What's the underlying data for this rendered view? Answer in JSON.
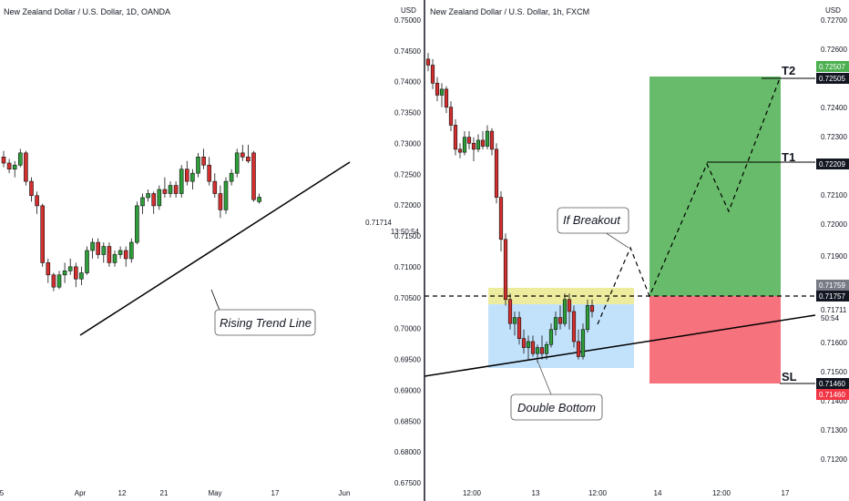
{
  "chart_data": [
    {
      "type": "candlestick",
      "title": "New Zealand Dollar / U.S. Dollar, 1D, OANDA",
      "x_tick_labels": [
        "5",
        "Apr",
        "12",
        "21",
        "May",
        "17",
        "Jun"
      ],
      "price_axis_labels": [
        "0.71714",
        "13:50:54"
      ],
      "trend_line_label": "Rising Trend Line",
      "candles": [
        [
          0.727,
          0.7285,
          0.7245,
          0.7255
        ],
        [
          0.7255,
          0.7265,
          0.723,
          0.724
        ],
        [
          0.724,
          0.726,
          0.722,
          0.725
        ],
        [
          0.725,
          0.729,
          0.7245,
          0.728
        ],
        [
          0.728,
          0.7285,
          0.72,
          0.721
        ],
        [
          0.721,
          0.722,
          0.716,
          0.7175
        ],
        [
          0.7175,
          0.7185,
          0.713,
          0.715
        ],
        [
          0.715,
          0.7155,
          0.7,
          0.701
        ],
        [
          0.701,
          0.702,
          0.696,
          0.698
        ],
        [
          0.698,
          0.6985,
          0.694,
          0.695
        ],
        [
          0.695,
          0.699,
          0.6945,
          0.698
        ],
        [
          0.698,
          0.701,
          0.696,
          0.699
        ],
        [
          0.699,
          0.702,
          0.698,
          0.7
        ],
        [
          0.7,
          0.701,
          0.695,
          0.697
        ],
        [
          0.697,
          0.7,
          0.6955,
          0.6985
        ],
        [
          0.6985,
          0.705,
          0.698,
          0.704
        ],
        [
          0.704,
          0.707,
          0.702,
          0.706
        ],
        [
          0.706,
          0.707,
          0.702,
          0.703
        ],
        [
          0.703,
          0.706,
          0.701,
          0.705
        ],
        [
          0.705,
          0.706,
          0.7,
          0.701
        ],
        [
          0.701,
          0.704,
          0.7,
          0.703
        ],
        [
          0.703,
          0.705,
          0.702,
          0.704
        ],
        [
          0.704,
          0.705,
          0.7,
          0.702
        ],
        [
          0.702,
          0.707,
          0.701,
          0.706
        ],
        [
          0.706,
          0.716,
          0.7055,
          0.715
        ],
        [
          0.715,
          0.718,
          0.713,
          0.717
        ],
        [
          0.717,
          0.719,
          0.716,
          0.718
        ],
        [
          0.718,
          0.7185,
          0.713,
          0.715
        ],
        [
          0.715,
          0.72,
          0.714,
          0.719
        ],
        [
          0.719,
          0.722,
          0.717,
          0.718
        ],
        [
          0.718,
          0.721,
          0.717,
          0.72
        ],
        [
          0.72,
          0.721,
          0.717,
          0.718
        ],
        [
          0.718,
          0.725,
          0.717,
          0.724
        ],
        [
          0.724,
          0.726,
          0.72,
          0.721
        ],
        [
          0.721,
          0.724,
          0.719,
          0.723
        ],
        [
          0.723,
          0.728,
          0.722,
          0.727
        ],
        [
          0.727,
          0.729,
          0.724,
          0.725
        ],
        [
          0.725,
          0.727,
          0.72,
          0.721
        ],
        [
          0.721,
          0.723,
          0.717,
          0.718
        ],
        [
          0.718,
          0.72,
          0.712,
          0.714
        ],
        [
          0.714,
          0.722,
          0.713,
          0.721
        ],
        [
          0.721,
          0.724,
          0.72,
          0.723
        ],
        [
          0.723,
          0.729,
          0.722,
          0.728
        ],
        [
          0.728,
          0.73,
          0.726,
          0.727
        ],
        [
          0.727,
          0.73,
          0.7255,
          0.726
        ],
        [
          0.728,
          0.7285,
          0.716,
          0.7165
        ],
        [
          0.716,
          0.718,
          0.7155,
          0.7171
        ]
      ],
      "y_range": [
        0.676,
        0.732
      ]
    },
    {
      "type": "candlestick",
      "title": "New Zealand Dollar / U.S. Dollar, 1h, FXCM",
      "currency": "USD",
      "y_ticks": [
        "0.75000",
        "0.74500",
        "0.74000",
        "0.73500",
        "0.73000",
        "0.72500",
        "0.72000",
        "0.71500",
        "0.71000",
        "0.70500",
        "0.70000",
        "0.69500",
        "0.69000",
        "0.68500",
        "0.68000",
        "0.67500"
      ],
      "x_tick_labels": [
        "12:00",
        "13",
        "12:00",
        "14",
        "12:00",
        "17"
      ],
      "annotations": {
        "breakout": "If Breakout",
        "double_bottom": "Double Bottom",
        "t1": "T1",
        "t2": "T2",
        "sl": "SL"
      },
      "candles": [
        [
          0.745,
          0.746,
          0.743,
          0.744
        ],
        [
          0.744,
          0.745,
          0.74,
          0.741
        ],
        [
          0.741,
          0.742,
          0.738,
          0.739
        ],
        [
          0.739,
          0.741,
          0.737,
          0.74
        ],
        [
          0.74,
          0.7405,
          0.736,
          0.737
        ],
        [
          0.737,
          0.738,
          0.733,
          0.734
        ],
        [
          0.734,
          0.735,
          0.729,
          0.73
        ],
        [
          0.73,
          0.731,
          0.7285,
          0.7295
        ],
        [
          0.7295,
          0.733,
          0.729,
          0.732
        ],
        [
          0.732,
          0.733,
          0.73,
          0.731
        ],
        [
          0.731,
          0.732,
          0.728,
          0.73
        ],
        [
          0.73,
          0.7325,
          0.7295,
          0.7315
        ],
        [
          0.7315,
          0.733,
          0.73,
          0.7305
        ],
        [
          0.7305,
          0.734,
          0.73,
          0.733
        ],
        [
          0.733,
          0.7335,
          0.729,
          0.73
        ],
        [
          0.73,
          0.731,
          0.721,
          0.722
        ],
        [
          0.722,
          0.723,
          0.713,
          0.715
        ],
        [
          0.715,
          0.716,
          0.704,
          0.705
        ],
        [
          0.705,
          0.706,
          0.7,
          0.701
        ],
        [
          0.701,
          0.703,
          0.699,
          0.702
        ],
        [
          0.702,
          0.703,
          0.6975,
          0.6985
        ],
        [
          0.6985,
          0.7,
          0.696,
          0.697
        ],
        [
          0.697,
          0.699,
          0.695,
          0.698
        ],
        [
          0.698,
          0.699,
          0.6955,
          0.696
        ],
        [
          0.696,
          0.6975,
          0.6945,
          0.697
        ],
        [
          0.697,
          0.699,
          0.695,
          0.696
        ],
        [
          0.696,
          0.698,
          0.695,
          0.6975
        ],
        [
          0.6975,
          0.701,
          0.697,
          0.7
        ],
        [
          0.7,
          0.703,
          0.699,
          0.702
        ],
        [
          0.702,
          0.704,
          0.7,
          0.701
        ],
        [
          0.701,
          0.706,
          0.7005,
          0.705
        ],
        [
          0.705,
          0.706,
          0.7,
          0.703
        ],
        [
          0.703,
          0.704,
          0.697,
          0.698
        ],
        [
          0.698,
          0.7,
          0.695,
          0.6955
        ],
        [
          0.6955,
          0.701,
          0.695,
          0.7
        ],
        [
          0.7,
          0.705,
          0.6995,
          0.704
        ],
        [
          0.704,
          0.705,
          0.702,
          0.703
        ]
      ],
      "y_range": [
        0.6745,
        0.7515
      ],
      "right_axis": {
        "currency": "USD",
        "y_ticks": [
          "0.72700",
          "0.72600",
          "0.72400",
          "0.72300",
          "0.72100",
          "0.72000",
          "0.71900",
          "0.71600",
          "0.71500",
          "0.71400",
          "0.71300",
          "0.71200"
        ],
        "price_tags": [
          {
            "label": "0.72507",
            "color": "#4caf50"
          },
          {
            "label": "0.72505",
            "color": "#131722"
          },
          {
            "label": "0.72209",
            "color": "#131722"
          },
          {
            "label": "0.71759",
            "color": "#787b86"
          },
          {
            "label": "0.71757",
            "color": "#131722"
          },
          {
            "label": "0.71460",
            "color": "#131722"
          },
          {
            "label": "0.71460",
            "color": "#f23645"
          }
        ],
        "current": [
          "0.71711",
          "50:54"
        ]
      }
    }
  ],
  "colors": {
    "up": "#26a69a",
    "down": "#ef5350",
    "up_body": "#2e9e3a",
    "down_body": "#d32f2f",
    "target_zone": "#4caf50",
    "stop_zone": "#f23645",
    "double_bottom_zone": "#90caf9",
    "resistance_zone": "#fff176"
  }
}
